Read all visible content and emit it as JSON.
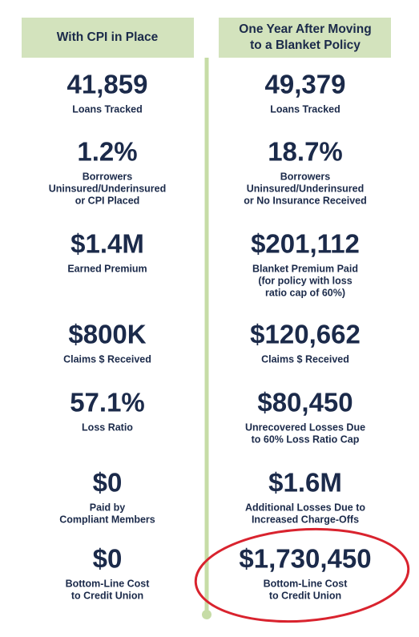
{
  "columns": [
    {
      "header": [
        "With CPI in Place"
      ],
      "items": [
        {
          "value": "41,859",
          "label": [
            "Loans Tracked"
          ]
        },
        {
          "value": "1.2%",
          "label": [
            "Borrowers",
            "Uninsured/Underinsured",
            "or CPI Placed"
          ]
        },
        {
          "value": "$1.4M",
          "label": [
            "Earned Premium"
          ]
        },
        {
          "value": "$800K",
          "label": [
            "Claims $ Received"
          ]
        },
        {
          "value": "57.1%",
          "label": [
            "Loss Ratio"
          ]
        },
        {
          "value": "$0",
          "label": [
            "Paid by",
            "Compliant Members"
          ]
        },
        {
          "value": "$0",
          "label": [
            "Bottom-Line Cost",
            "to Credit Union"
          ]
        }
      ]
    },
    {
      "header": [
        "One Year After Moving",
        "to a Blanket Policy"
      ],
      "items": [
        {
          "value": "49,379",
          "label": [
            "Loans Tracked"
          ]
        },
        {
          "value": "18.7%",
          "label": [
            "Borrowers",
            "Uninsured/Underinsured",
            "or No Insurance Received"
          ]
        },
        {
          "value": "$201,112",
          "label": [
            "Blanket Premium Paid",
            "(for policy with loss",
            "ratio cap of 60%)"
          ]
        },
        {
          "value": "$120,662",
          "label": [
            "Claims $ Received"
          ]
        },
        {
          "value": "$80,450",
          "label": [
            "Unrecovered Losses Due",
            "to 60% Loss Ratio Cap"
          ]
        },
        {
          "value": "$1.6M",
          "label": [
            "Additional Losses Due to",
            "Increased Charge-Offs"
          ]
        },
        {
          "value": "$1,730,450",
          "label": [
            "Bottom-Line Cost",
            "to Credit Union"
          ]
        }
      ]
    }
  ]
}
